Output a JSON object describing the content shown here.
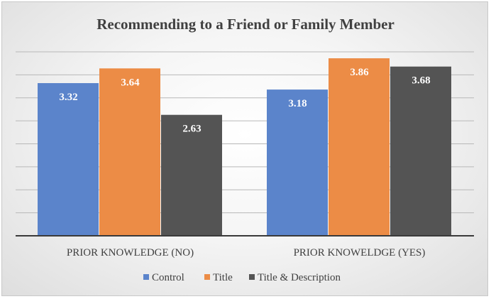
{
  "chart_data": {
    "type": "bar",
    "title": "Recommending to a Friend or Family Member",
    "categories": [
      "PRIOR KNOWLEDGE (NO)",
      "PRIOR KNOWELDGE (YES)"
    ],
    "series": [
      {
        "name": "Control",
        "values": [
          3.32,
          3.18
        ],
        "color": "#5b84cb"
      },
      {
        "name": "Title",
        "values": [
          3.64,
          3.86
        ],
        "color": "#ec8c46"
      },
      {
        "name": "Title & Description",
        "values": [
          2.63,
          3.68
        ],
        "color": "#545454"
      }
    ],
    "ylim": [
      0,
      4
    ],
    "grid": true,
    "data_labels": true,
    "legend_position": "bottom"
  }
}
